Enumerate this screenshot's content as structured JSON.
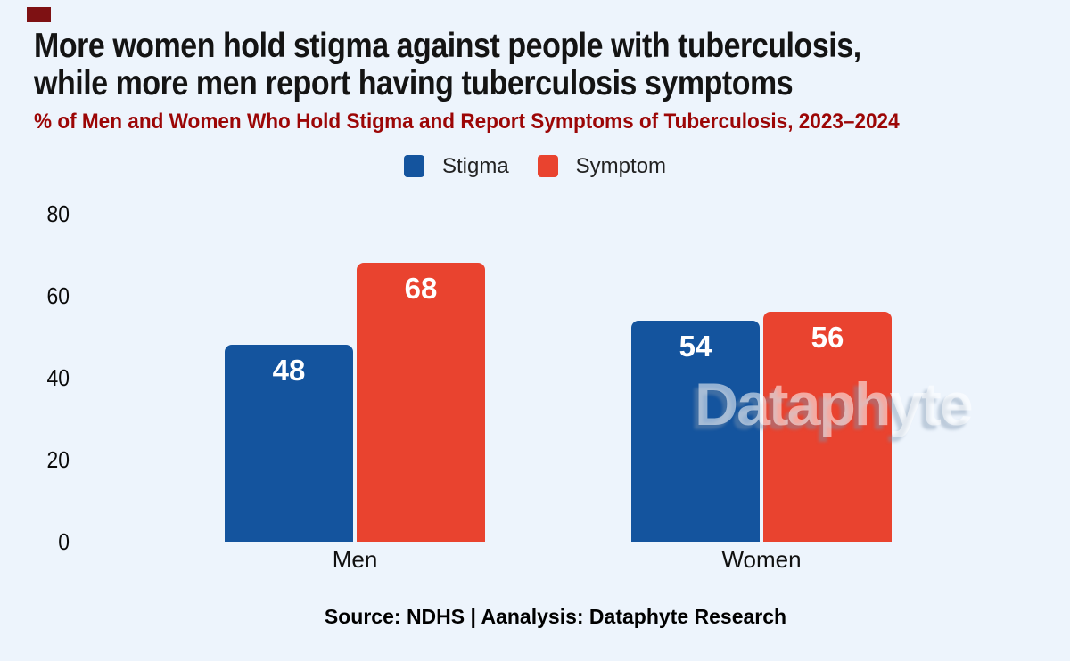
{
  "colors": {
    "background": "#edf4fc",
    "stigma": "#14549e",
    "symptom": "#e9432f",
    "title_text": "#141414",
    "subtitle_text": "#9c0606",
    "bar_label_text": "#ffffff",
    "axis_label_text": "#0a0a0a",
    "corner_mark": "#7e1113",
    "watermark_text": "#dde6f1"
  },
  "header": {
    "title_lines": [
      "More women hold stigma against people with tuberculosis,",
      "while more men report having tuberculosis symptoms"
    ],
    "subtitle": "% of Men and Women Who Hold Stigma and Report Symptoms of Tuberculosis, 2023–2024"
  },
  "chart_data": {
    "type": "bar",
    "title": "More women hold stigma against people with tuberculosis, while more men report having tuberculosis symptoms",
    "subtitle": "% of Men and Women Who Hold Stigma and Report Symptoms of Tuberculosis, 2023–2024",
    "categories": [
      "Men",
      "Women"
    ],
    "series": [
      {
        "name": "Stigma",
        "values": [
          48,
          54
        ],
        "color": "#14549e"
      },
      {
        "name": "Symptom",
        "values": [
          68,
          56
        ],
        "color": "#e9432f"
      }
    ],
    "xlabel": "",
    "ylabel": "",
    "ylim": [
      0,
      80
    ],
    "yticks": [
      0,
      20,
      40,
      60,
      80
    ],
    "grid": false,
    "legend_position": "top-center",
    "data_labels": true
  },
  "watermark": {
    "text": "Dataphyte"
  },
  "footer": {
    "text": "Source: NDHS | Aanalysis: Dataphyte Research"
  }
}
